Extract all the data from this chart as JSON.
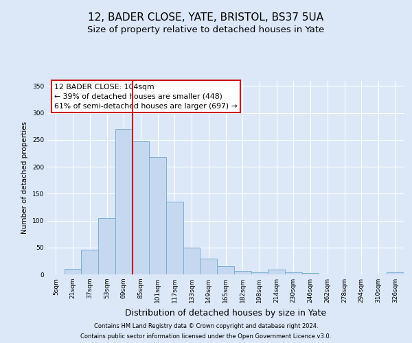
{
  "title1": "12, BADER CLOSE, YATE, BRISTOL, BS37 5UA",
  "title2": "Size of property relative to detached houses in Yate",
  "xlabel": "Distribution of detached houses by size in Yate",
  "ylabel": "Number of detached properties",
  "footer1": "Contains HM Land Registry data © Crown copyright and database right 2024.",
  "footer2": "Contains public sector information licensed under the Open Government Licence v3.0.",
  "annotation_title": "12 BADER CLOSE: 104sqm",
  "annotation_line1": "← 39% of detached houses are smaller (448)",
  "annotation_line2": "61% of semi-detached houses are larger (697) →",
  "bar_categories": [
    "5sqm",
    "21sqm",
    "37sqm",
    "53sqm",
    "69sqm",
    "85sqm",
    "101sqm",
    "117sqm",
    "133sqm",
    "149sqm",
    "165sqm",
    "182sqm",
    "198sqm",
    "214sqm",
    "230sqm",
    "246sqm",
    "262sqm",
    "278sqm",
    "294sqm",
    "310sqm",
    "326sqm"
  ],
  "bar_values": [
    0,
    10,
    46,
    104,
    270,
    247,
    218,
    135,
    50,
    29,
    15,
    7,
    4,
    9,
    4,
    2,
    0,
    0,
    0,
    0,
    4
  ],
  "bar_color": "#c5d8f0",
  "bar_edgecolor": "#7aafd4",
  "vline_color": "#cc0000",
  "vline_x": 4.5,
  "ylim": [
    0,
    360
  ],
  "yticks": [
    0,
    50,
    100,
    150,
    200,
    250,
    300,
    350
  ],
  "bg_color": "#dce8f8",
  "plot_bg": "#dce8f8",
  "grid_color": "#ffffff",
  "title_fontsize": 11,
  "subtitle_fontsize": 9.5,
  "annotation_box_color": "#ffffff",
  "annotation_box_edge": "#cc0000",
  "annotation_fontsize": 7.8,
  "ylabel_fontsize": 7.5,
  "xlabel_fontsize": 9,
  "tick_fontsize": 6.5,
  "footer_fontsize": 6
}
